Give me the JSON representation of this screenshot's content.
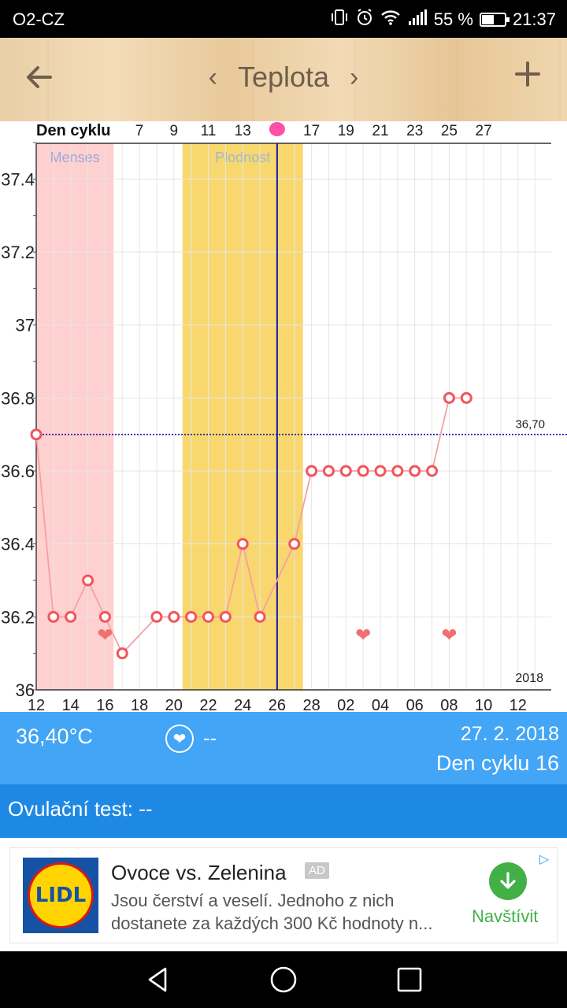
{
  "status_bar": {
    "carrier": "O2-CZ",
    "battery_pct": "55 %",
    "battery_level": 0.55,
    "time": "21:37"
  },
  "app_bar": {
    "title": "Teplota",
    "back_icon": "arrow-left-icon",
    "prev_icon": "chevron-left-icon",
    "next_icon": "chevron-right-icon",
    "add_icon": "plus-icon"
  },
  "chart_data": {
    "type": "line",
    "top_axis_label": "Den cyklu",
    "top_ticks": [
      "7",
      "9",
      "11",
      "13",
      "17",
      "19",
      "21",
      "23",
      "25",
      "27"
    ],
    "top_tick_days": [
      7,
      9,
      11,
      13,
      17,
      19,
      21,
      23,
      25,
      27
    ],
    "x_tick_labels": [
      "12",
      "14",
      "16",
      "18",
      "20",
      "22",
      "24",
      "26",
      "28",
      "02",
      "04",
      "06",
      "08",
      "10",
      "12"
    ],
    "ylim": [
      36.0,
      37.5
    ],
    "y_tick_labels": [
      "37.4",
      "37.2",
      "37",
      "36.8",
      "36.6",
      "36.4",
      "36.2",
      "36"
    ],
    "y_ticks": [
      37.4,
      37.2,
      37.0,
      36.8,
      36.6,
      36.4,
      36.2,
      36.0
    ],
    "regions": [
      {
        "label": "Menses",
        "from_day": 1,
        "to_day": 5,
        "color": "#ffd0d0",
        "label_color": "#9aa8dc"
      },
      {
        "label": "Plodnost",
        "from_day": 10,
        "to_day": 16,
        "color": "#f8d86e",
        "label_color": "#a0b8d0"
      }
    ],
    "coverline": {
      "value": 36.7,
      "label": "36,70",
      "color": "#1a1aa8"
    },
    "selected_day": 15,
    "ovulation_marker_color": "#ff4fa8",
    "year_label": "2018",
    "series": [
      {
        "color": "#f2545b",
        "points": [
          {
            "day": 1,
            "value": 36.7
          },
          {
            "day": 2,
            "value": 36.2
          },
          {
            "day": 3,
            "value": 36.2
          },
          {
            "day": 4,
            "value": 36.3
          },
          {
            "day": 5,
            "value": 36.2
          },
          {
            "day": 6,
            "value": 36.1
          },
          {
            "day": 8,
            "value": 36.2
          },
          {
            "day": 9,
            "value": 36.2
          },
          {
            "day": 10,
            "value": 36.2
          },
          {
            "day": 11,
            "value": 36.2
          },
          {
            "day": 12,
            "value": 36.2
          },
          {
            "day": 13,
            "value": 36.4
          },
          {
            "day": 14,
            "value": 36.2
          },
          {
            "day": 16,
            "value": 36.4
          },
          {
            "day": 17,
            "value": 36.6
          },
          {
            "day": 18,
            "value": 36.6
          },
          {
            "day": 19,
            "value": 36.6
          },
          {
            "day": 20,
            "value": 36.6
          },
          {
            "day": 21,
            "value": 36.6
          },
          {
            "day": 22,
            "value": 36.6
          },
          {
            "day": 23,
            "value": 36.6
          },
          {
            "day": 24,
            "value": 36.6
          },
          {
            "day": 25,
            "value": 36.8
          },
          {
            "day": 26,
            "value": 36.8
          }
        ]
      }
    ],
    "heart_days": [
      5,
      20,
      25
    ],
    "heart_value": 36.15
  },
  "info": {
    "temperature": "36,40°C",
    "intercourse": "--",
    "date": "27. 2. 2018",
    "cycle_day": "Den cyklu 16"
  },
  "ovulation": {
    "label": "Ovulační test:",
    "value": "--"
  },
  "ad": {
    "brand": "LIDL",
    "headline": "Ovoce vs. Zelenina",
    "tag": "AD",
    "description": "Jsou čerství a veselí. Jednoho z nich dostanete za každých 300 Kč hodnoty n...",
    "cta": "Navštívit",
    "cta_icon": "download-arrow-icon"
  },
  "nav_bar": {
    "back_icon": "triangle-back-icon",
    "home_icon": "circle-home-icon",
    "recents_icon": "square-recents-icon"
  }
}
